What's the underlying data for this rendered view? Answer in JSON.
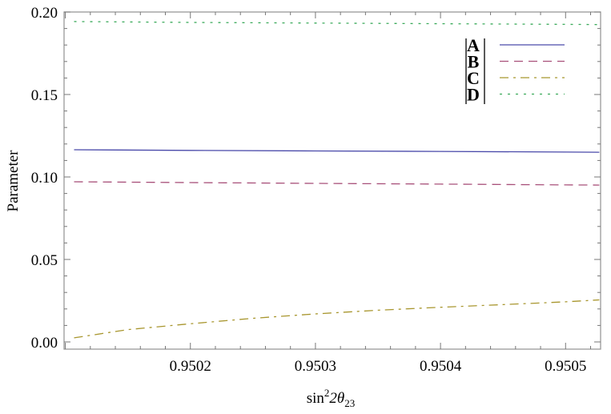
{
  "chart_data": {
    "type": "line",
    "title": "",
    "xlabel": "sin²2θ₂₃",
    "xlabel_parts": {
      "base": "sin",
      "sup": "2",
      "mid": "2θ",
      "sub": "23"
    },
    "ylabel": "Parameter",
    "xlim": [
      0.950099,
      0.950528
    ],
    "ylim": [
      0.0,
      0.2
    ],
    "xticks": [
      "0.9502",
      "0.9503",
      "0.9504",
      "0.9505"
    ],
    "xtick_values": [
      0.9502,
      0.9503,
      0.9504,
      0.9505
    ],
    "yticks": [
      "0.00",
      "0.05",
      "0.10",
      "0.15",
      "0.20"
    ],
    "ytick_values": [
      0.0,
      0.05,
      0.1,
      0.15,
      0.2
    ],
    "grid": false,
    "legend_placement": "top-right",
    "series": [
      {
        "name": "|A|",
        "label": "A",
        "color": "#4a4aaa",
        "dash": "solid",
        "x": [
          0.950107,
          0.9502,
          0.9503,
          0.9504,
          0.9505,
          0.950527
        ],
        "y": [
          0.1165,
          0.1161,
          0.1158,
          0.1155,
          0.1151,
          0.115
        ]
      },
      {
        "name": "|B|",
        "label": "B",
        "color": "#a8507a",
        "dash": "dashed",
        "x": [
          0.950107,
          0.9502,
          0.9503,
          0.9504,
          0.9505,
          0.950527
        ],
        "y": [
          0.0971,
          0.0966,
          0.0961,
          0.0957,
          0.0952,
          0.0951
        ]
      },
      {
        "name": "|C|",
        "label": "C",
        "color": "#a8962e",
        "dash": "dashdot",
        "x": [
          0.950107,
          0.95015,
          0.9502,
          0.95025,
          0.9503,
          0.95035,
          0.9504,
          0.95045,
          0.9505,
          0.950527
        ],
        "y": [
          0.0025,
          0.0075,
          0.011,
          0.0143,
          0.017,
          0.0192,
          0.021,
          0.0226,
          0.0243,
          0.0255
        ]
      },
      {
        "name": "|D|",
        "label": "D",
        "color": "#3aaa5a",
        "dash": "dotted",
        "x": [
          0.950107,
          0.9502,
          0.9503,
          0.9504,
          0.9505,
          0.950527
        ],
        "y": [
          0.1942,
          0.1937,
          0.1933,
          0.1929,
          0.1925,
          0.1924
        ]
      }
    ]
  }
}
